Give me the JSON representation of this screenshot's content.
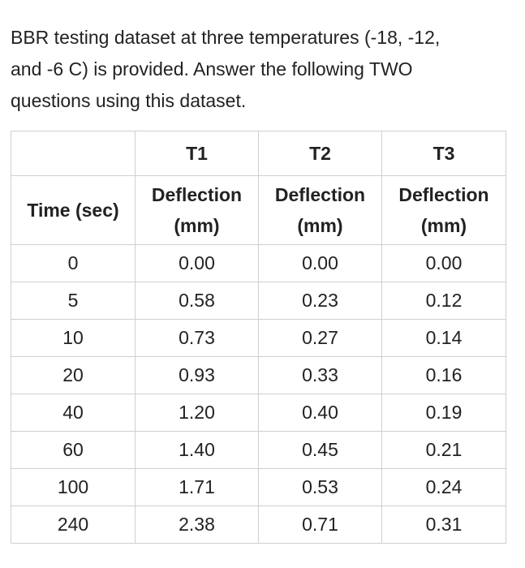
{
  "intro": {
    "line1": "BBR testing dataset at three temperatures (-18, -12,",
    "line2": "and -6 C) is provided. Answer the following TWO",
    "line3": "questions using this dataset."
  },
  "table": {
    "time_header": "Time (sec)",
    "groups": [
      "T1",
      "T2",
      "T3"
    ],
    "sub_header_line1": "Deflection",
    "sub_header_line2": "(mm)",
    "rows": [
      [
        "0",
        "0.00",
        "0.00",
        "0.00"
      ],
      [
        "5",
        "0.58",
        "0.23",
        "0.12"
      ],
      [
        "10",
        "0.73",
        "0.27",
        "0.14"
      ],
      [
        "20",
        "0.93",
        "0.33",
        "0.16"
      ],
      [
        "40",
        "1.20",
        "0.40",
        "0.19"
      ],
      [
        "60",
        "1.40",
        "0.45",
        "0.21"
      ],
      [
        "100",
        "1.71",
        "0.53",
        "0.24"
      ],
      [
        "240",
        "2.38",
        "0.71",
        "0.31"
      ]
    ]
  }
}
